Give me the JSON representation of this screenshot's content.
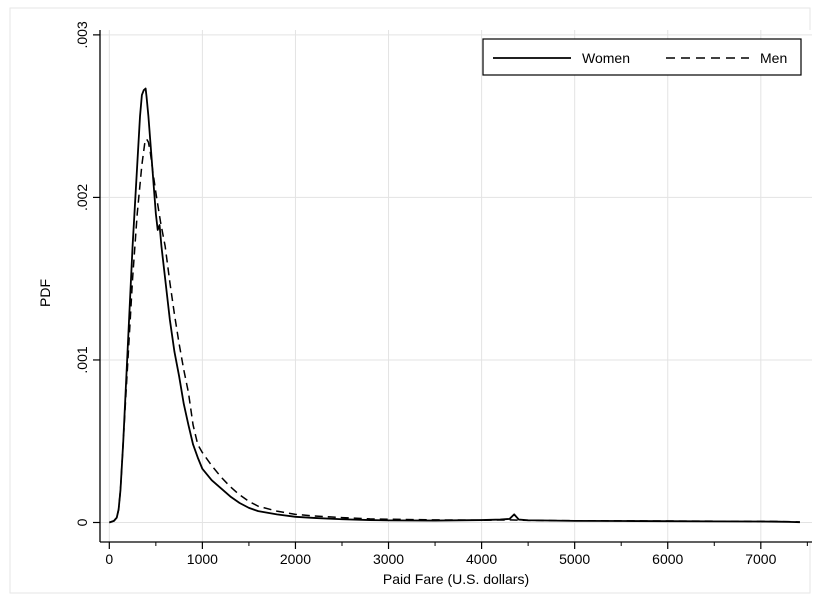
{
  "chart_data": {
    "type": "line",
    "xlabel": "Paid Fare (U.S. dollars)",
    "ylabel": "PDF",
    "xlim": [
      -100,
      7550
    ],
    "ylim": [
      -0.00012,
      0.00303
    ],
    "x_ticks": [
      0,
      1000,
      2000,
      3000,
      4000,
      5000,
      6000,
      7000
    ],
    "x_tick_labels": [
      "0",
      "1000",
      "2000",
      "3000",
      "4000",
      "5000",
      "6000",
      "7000"
    ],
    "y_ticks": [
      0,
      0.001,
      0.002,
      0.003
    ],
    "y_tick_labels": [
      "0",
      ".001",
      ".002",
      ".003"
    ],
    "grid": true,
    "legend_position": "top-right",
    "series": [
      {
        "name": "Women",
        "style": "solid",
        "x": [
          0,
          50,
          80,
          100,
          120,
          150,
          200,
          250,
          300,
          330,
          350,
          370,
          390,
          400,
          420,
          440,
          460,
          480,
          500,
          520,
          540,
          560,
          580,
          600,
          650,
          700,
          750,
          800,
          850,
          900,
          950,
          1000,
          1100,
          1200,
          1300,
          1400,
          1500,
          1600,
          1800,
          2000,
          2200,
          2500,
          2800,
          3000,
          3500,
          4000,
          4200,
          4300,
          4350,
          4400,
          4500,
          5000,
          5500,
          6000,
          6500,
          7000,
          7200,
          7300,
          7420
        ],
        "y": [
          0,
          1e-05,
          3e-05,
          8e-05,
          0.0002,
          0.0005,
          0.0011,
          0.0017,
          0.0022,
          0.0025,
          0.00263,
          0.00266,
          0.00267,
          0.00262,
          0.0025,
          0.00235,
          0.0022,
          0.00205,
          0.0019,
          0.0018,
          0.00183,
          0.0017,
          0.0016,
          0.0015,
          0.00125,
          0.00105,
          0.0009,
          0.00073,
          0.0006,
          0.00048,
          0.0004,
          0.00033,
          0.00026,
          0.00021,
          0.00016,
          0.00012,
          9e-05,
          7e-05,
          5e-05,
          3.5e-05,
          2.8e-05,
          2e-05,
          1.5e-05,
          1.3e-05,
          1.2e-05,
          1.5e-05,
          1.8e-05,
          2.2e-05,
          5e-05,
          1.8e-05,
          1.4e-05,
          1e-05,
          9e-06,
          8e-06,
          7e-06,
          6e-06,
          5e-06,
          4e-06,
          2e-06
        ]
      },
      {
        "name": "Men",
        "style": "dashed",
        "x": [
          0,
          50,
          80,
          100,
          120,
          150,
          200,
          250,
          300,
          350,
          380,
          400,
          420,
          440,
          470,
          500,
          550,
          600,
          650,
          700,
          750,
          800,
          850,
          900,
          950,
          1000,
          1100,
          1200,
          1300,
          1400,
          1500,
          1600,
          1800,
          2000,
          2200,
          2500,
          2800,
          3000,
          3500,
          4000,
          4300,
          4500,
          5000,
          5500,
          6000,
          6500,
          7000,
          7200,
          7300,
          7420
        ],
        "y": [
          0,
          1e-05,
          3e-05,
          8e-05,
          0.0002,
          0.0005,
          0.001,
          0.0015,
          0.0019,
          0.0022,
          0.00233,
          0.00236,
          0.00234,
          0.00228,
          0.00215,
          0.00203,
          0.00185,
          0.0017,
          0.00148,
          0.00128,
          0.0011,
          0.00094,
          0.0008,
          0.0006,
          0.00048,
          0.00043,
          0.00035,
          0.00028,
          0.00022,
          0.00017,
          0.00013,
          0.0001,
          7e-05,
          5e-05,
          4e-05,
          3e-05,
          2.2e-05,
          2e-05,
          1.6e-05,
          1.4e-05,
          1.6e-05,
          1.3e-05,
          1.1e-05,
          1e-05,
          9e-06,
          8e-06,
          7e-06,
          6e-06,
          5e-06,
          3e-06
        ]
      }
    ]
  }
}
